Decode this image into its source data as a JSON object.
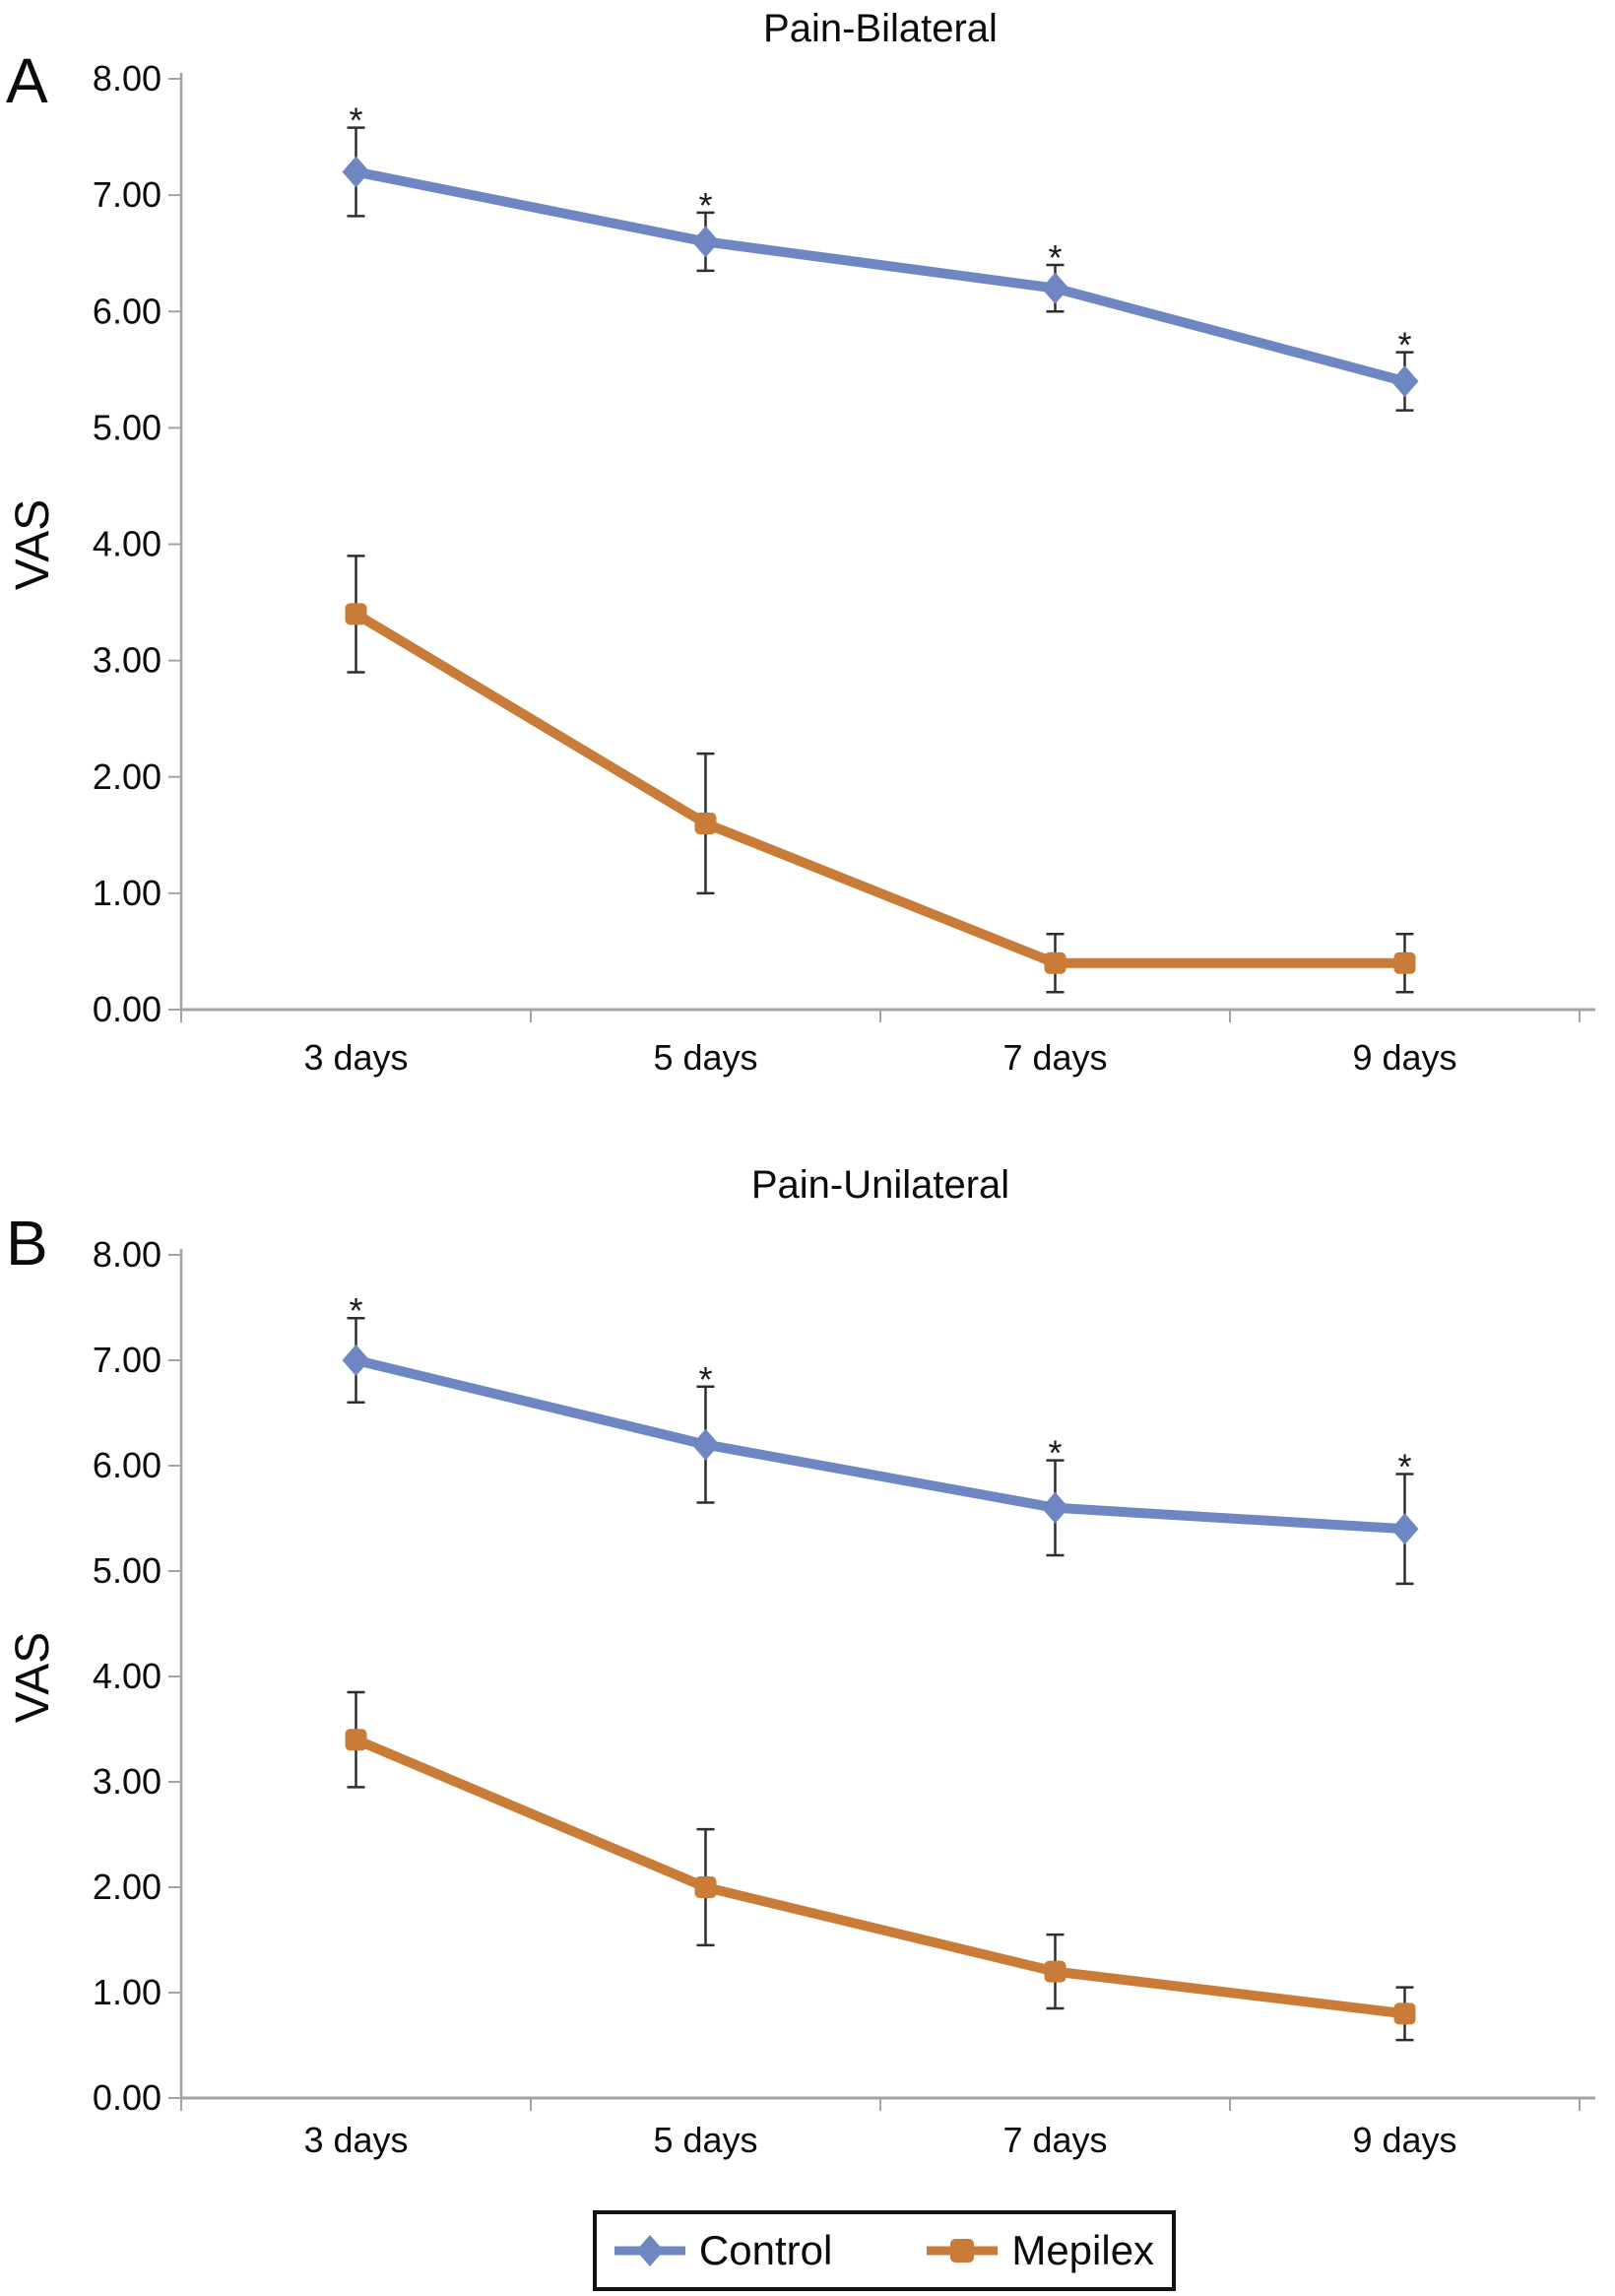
{
  "figure_title": "",
  "chart_data": [
    {
      "type": "line",
      "panel_label": "A",
      "title": "Pain-Bilateral",
      "categories": [
        "3 days",
        "5 days",
        "7 days",
        "9 days"
      ],
      "xlabel": "",
      "ylabel": "VAS",
      "ylim": [
        0,
        8
      ],
      "ytick_step": 1,
      "ytick_labels": [
        "8.00",
        "7.00",
        "6.00",
        "5.00",
        "4.00",
        "3.00",
        "2.00",
        "1.00",
        "0.00"
      ],
      "grid": false,
      "legend_position": "shared-bottom",
      "series": [
        {
          "name": "Control",
          "marker": "diamond",
          "color": "#6E87C3",
          "values": [
            7.2,
            6.6,
            6.2,
            5.4
          ],
          "error_bars": [
            0.38,
            0.25,
            0.2,
            0.25
          ],
          "significance": [
            "*",
            "*",
            "*",
            "*"
          ]
        },
        {
          "name": "Mepilex",
          "marker": "square",
          "color": "#C97B38",
          "values": [
            3.4,
            1.6,
            0.4,
            0.4
          ],
          "error_bars": [
            0.5,
            0.6,
            0.25,
            0.25
          ],
          "significance": [
            "",
            "",
            "",
            ""
          ]
        }
      ]
    },
    {
      "type": "line",
      "panel_label": "B",
      "title": "Pain-Unilateral",
      "categories": [
        "3 days",
        "5 days",
        "7 days",
        "9 days"
      ],
      "xlabel": "",
      "ylabel": "VAS",
      "ylim": [
        0,
        8
      ],
      "ytick_step": 1,
      "ytick_labels": [
        "8.00",
        "7.00",
        "6.00",
        "5.00",
        "4.00",
        "3.00",
        "2.00",
        "1.00",
        "0.00"
      ],
      "grid": false,
      "legend_position": "shared-bottom",
      "series": [
        {
          "name": "Control",
          "marker": "diamond",
          "color": "#6E87C3",
          "values": [
            7.0,
            6.2,
            5.6,
            5.4
          ],
          "error_bars": [
            0.4,
            0.55,
            0.45,
            0.52
          ],
          "significance": [
            "*",
            "*",
            "*",
            "*"
          ]
        },
        {
          "name": "Mepilex",
          "marker": "square",
          "color": "#C97B38",
          "values": [
            3.4,
            2.0,
            1.2,
            0.8
          ],
          "error_bars": [
            0.45,
            0.55,
            0.35,
            0.25
          ],
          "significance": [
            "",
            "",
            "",
            ""
          ]
        }
      ]
    }
  ],
  "legend": {
    "items": [
      {
        "label": "Control",
        "marker": "diamond",
        "color": "#6E87C3"
      },
      {
        "label": "Mepilex",
        "marker": "square",
        "color": "#C97B38"
      }
    ],
    "border_color": "#121212"
  },
  "styles": {
    "axis_color": "#A3A3A3",
    "error_bar_color": "#2E2E2E",
    "text_color": "#0B0B0B",
    "background": "#FFFFFF",
    "significance_symbol_color": "#1A1A1A"
  }
}
